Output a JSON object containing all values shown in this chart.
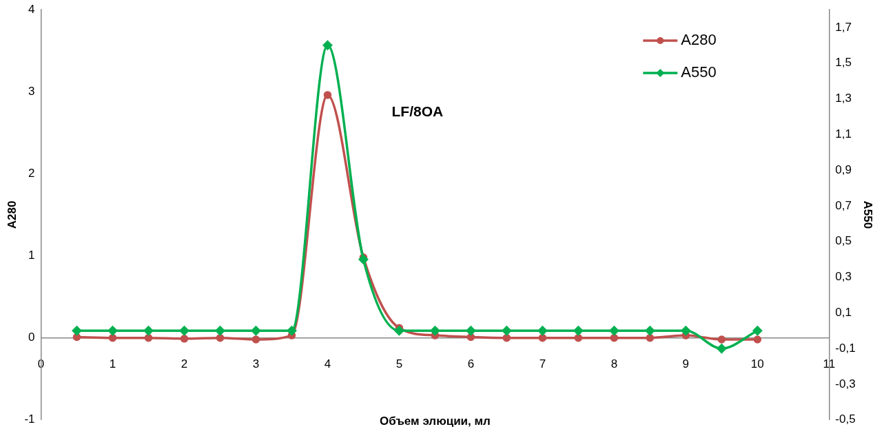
{
  "chart_data": {
    "type": "line",
    "xlabel": "Объем элюции, мл",
    "ylabel": "A280",
    "y2label": "A550",
    "annotations": [
      "LF/8OA"
    ],
    "x": [
      0.5,
      1,
      1.5,
      2,
      2.5,
      3,
      3.5,
      4,
      4.5,
      5,
      5.5,
      6,
      6.5,
      7,
      7.5,
      8,
      8.5,
      9,
      9.5,
      10
    ],
    "series": [
      {
        "name": "A280",
        "color": "#c0504d",
        "marker": "circle",
        "values": [
          0.01,
          0,
          0,
          -0.01,
          0,
          -0.02,
          0.03,
          2.96,
          0.98,
          0.12,
          0.03,
          0.01,
          0,
          0,
          0,
          0,
          0,
          0.03,
          -0.02,
          -0.02
        ]
      },
      {
        "name": "A550",
        "color": "#00b050",
        "marker": "diamond",
        "axis": "y2",
        "values": [
          0,
          0,
          0,
          0,
          0,
          0,
          0,
          1.6,
          0.4,
          0,
          0,
          0,
          0,
          0,
          0,
          0,
          0,
          0,
          -0.1,
          0
        ]
      }
    ],
    "xlim": [
      0,
      11
    ],
    "xticks": [
      0,
      1,
      2,
      3,
      4,
      5,
      6,
      7,
      8,
      9,
      10,
      11
    ],
    "ylim": [
      -1,
      4
    ],
    "yticks": [
      -1,
      0,
      1,
      2,
      3,
      4
    ],
    "y2lim": [
      -0.5,
      1.8
    ],
    "y2ticks": [
      {
        "value": -0.5,
        "label": "-0,5"
      },
      {
        "value": -0.3,
        "label": "-0,3"
      },
      {
        "value": -0.1,
        "label": "-0,1"
      },
      {
        "value": 0.1,
        "label": "0,1"
      },
      {
        "value": 0.3,
        "label": "0,3"
      },
      {
        "value": 0.5,
        "label": "0,5"
      },
      {
        "value": 0.7,
        "label": "0,7"
      },
      {
        "value": 0.9,
        "label": "0,9"
      },
      {
        "value": 1.1,
        "label": "1,1"
      },
      {
        "value": 1.3,
        "label": "1,3"
      },
      {
        "value": 1.5,
        "label": "1,5"
      },
      {
        "value": 1.7,
        "label": "1,7"
      }
    ],
    "grid": false,
    "legend": "top right",
    "line_style": "solid"
  }
}
